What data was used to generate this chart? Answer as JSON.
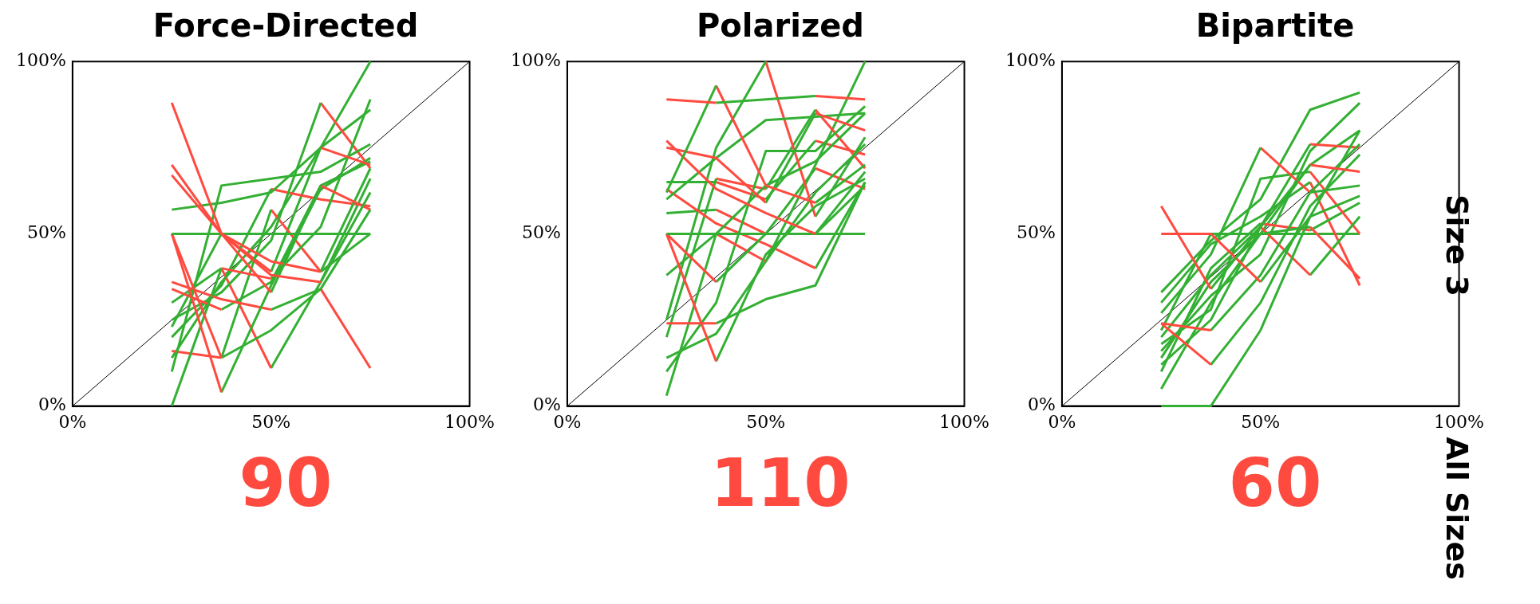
{
  "chart_data": [
    {
      "type": "line",
      "title": "Force-Directed",
      "xlim": [
        0,
        100
      ],
      "ylim": [
        0,
        100
      ],
      "xticks": [
        {
          "value": 0,
          "label": "0%"
        },
        {
          "value": 50,
          "label": "50%"
        },
        {
          "value": 100,
          "label": "100%"
        }
      ],
      "yticks": [
        {
          "value": 0,
          "label": "0%"
        },
        {
          "value": 50,
          "label": "50%"
        },
        {
          "value": 100,
          "label": "100%"
        }
      ],
      "grid": false,
      "legend": false,
      "annotations": [
        "90"
      ],
      "series": [
        {
          "x": [
            25,
            37.5,
            50,
            62.5
          ],
          "values": [
            88,
            50,
            38,
            36
          ],
          "color": "#ff4a3f"
        },
        {
          "x": [
            62.5,
            75
          ],
          "values": [
            36,
            62
          ],
          "color": "#33b033"
        },
        {
          "x": [
            25,
            37.5,
            50
          ],
          "values": [
            70,
            50,
            33
          ],
          "color": "#ff4a3f"
        },
        {
          "x": [
            50,
            62.5
          ],
          "values": [
            33,
            64
          ],
          "color": "#33b033"
        },
        {
          "x": [
            62.5,
            75
          ],
          "values": [
            64,
            57
          ],
          "color": "#ff4a3f"
        },
        {
          "x": [
            25,
            37.5,
            50,
            62.5
          ],
          "values": [
            67,
            50,
            42,
            39
          ],
          "color": "#ff4a3f"
        },
        {
          "x": [
            62.5,
            75
          ],
          "values": [
            39,
            69
          ],
          "color": "#33b033"
        },
        {
          "x": [
            25,
            37.5,
            50,
            62.5
          ],
          "values": [
            57,
            59,
            62,
            75
          ],
          "color": "#33b033"
        },
        {
          "x": [
            62.5,
            75
          ],
          "values": [
            75,
            70
          ],
          "color": "#ff4a3f"
        },
        {
          "x": [
            25,
            37.5,
            50,
            62.5,
            75
          ],
          "values": [
            50,
            50,
            50,
            50,
            50
          ],
          "color": "#33b033"
        },
        {
          "x": [
            25,
            37.5
          ],
          "values": [
            50,
            14
          ],
          "color": "#ff4a3f"
        },
        {
          "x": [
            37.5,
            50,
            62.5
          ],
          "values": [
            14,
            22,
            34
          ],
          "color": "#33b033"
        },
        {
          "x": [
            62.5,
            75
          ],
          "values": [
            34,
            11
          ],
          "color": "#ff4a3f"
        },
        {
          "x": [
            25,
            37.5
          ],
          "values": [
            50,
            4
          ],
          "color": "#ff4a3f"
        },
        {
          "x": [
            37.5,
            50,
            62.5,
            75
          ],
          "values": [
            4,
            35,
            63,
            72
          ],
          "color": "#33b033"
        },
        {
          "x": [
            25,
            37.5
          ],
          "values": [
            0,
            40
          ],
          "color": "#33b033"
        },
        {
          "x": [
            37.5,
            50
          ],
          "values": [
            40,
            37
          ],
          "color": "#ff4a3f"
        },
        {
          "x": [
            50,
            62.5,
            75
          ],
          "values": [
            37,
            52,
            89
          ],
          "color": "#33b033"
        },
        {
          "x": [
            25,
            37.5,
            50,
            62.5,
            75
          ],
          "values": [
            10,
            64,
            66,
            68,
            76
          ],
          "color": "#33b033"
        },
        {
          "x": [
            25,
            37.5,
            50
          ],
          "values": [
            36,
            31,
            28
          ],
          "color": "#ff4a3f"
        },
        {
          "x": [
            50,
            62.5,
            75
          ],
          "values": [
            28,
            34,
            57
          ],
          "color": "#33b033"
        },
        {
          "x": [
            25,
            37.5
          ],
          "values": [
            34,
            28
          ],
          "color": "#ff4a3f"
        },
        {
          "x": [
            37.5,
            50,
            62.5,
            75
          ],
          "values": [
            28,
            36,
            64,
            71
          ],
          "color": "#33b033"
        },
        {
          "x": [
            25,
            37.5,
            50,
            62.5
          ],
          "values": [
            25,
            33,
            48,
            88
          ],
          "color": "#33b033"
        },
        {
          "x": [
            62.5,
            75
          ],
          "values": [
            88,
            69
          ],
          "color": "#ff4a3f"
        },
        {
          "x": [
            25,
            37.5,
            50
          ],
          "values": [
            20,
            35,
            63
          ],
          "color": "#33b033"
        },
        {
          "x": [
            50,
            62.5,
            75
          ],
          "values": [
            63,
            60,
            58
          ],
          "color": "#ff4a3f"
        },
        {
          "x": [
            25,
            37.5
          ],
          "values": [
            16,
            14
          ],
          "color": "#ff4a3f"
        },
        {
          "x": [
            37.5,
            50
          ],
          "values": [
            14,
            57
          ],
          "color": "#33b033"
        },
        {
          "x": [
            50,
            62.5
          ],
          "values": [
            57,
            39
          ],
          "color": "#ff4a3f"
        },
        {
          "x": [
            62.5,
            75
          ],
          "values": [
            39,
            50
          ],
          "color": "#33b033"
        },
        {
          "x": [
            25,
            37.5
          ],
          "values": [
            30,
            40
          ],
          "color": "#33b033"
        },
        {
          "x": [
            37.5,
            50
          ],
          "values": [
            40,
            11
          ],
          "color": "#ff4a3f"
        },
        {
          "x": [
            50,
            62.5,
            75
          ],
          "values": [
            11,
            36,
            66
          ],
          "color": "#33b033"
        },
        {
          "x": [
            25,
            37.5
          ],
          "values": [
            23,
            50
          ],
          "color": "#33b033"
        },
        {
          "x": [
            37.5,
            50
          ],
          "values": [
            50,
            39
          ],
          "color": "#ff4a3f"
        },
        {
          "x": [
            50,
            62.5,
            75
          ],
          "values": [
            39,
            75,
            86
          ],
          "color": "#33b033"
        },
        {
          "x": [
            25,
            37.5,
            50,
            62.5,
            75
          ],
          "values": [
            14,
            36,
            52,
            75,
            100
          ],
          "color": "#33b033"
        },
        {
          "x": [
            0,
            100
          ],
          "values": [
            0,
            100
          ],
          "color": "#000000"
        }
      ]
    },
    {
      "type": "line",
      "title": "Polarized",
      "xlim": [
        0,
        100
      ],
      "ylim": [
        0,
        100
      ],
      "xticks": [
        {
          "value": 0,
          "label": "0%"
        },
        {
          "value": 50,
          "label": "50%"
        },
        {
          "value": 100,
          "label": "100%"
        }
      ],
      "yticks": [
        {
          "value": 0,
          "label": "0%"
        },
        {
          "value": 50,
          "label": "50%"
        },
        {
          "value": 100,
          "label": "100%"
        }
      ],
      "grid": false,
      "legend": false,
      "annotations": [
        "110"
      ],
      "series": [
        {
          "x": [
            25,
            37.5
          ],
          "values": [
            89,
            88
          ],
          "color": "#ff4a3f"
        },
        {
          "x": [
            37.5,
            50,
            62.5
          ],
          "values": [
            88,
            89,
            90
          ],
          "color": "#33b033"
        },
        {
          "x": [
            62.5,
            75
          ],
          "values": [
            90,
            89
          ],
          "color": "#ff4a3f"
        },
        {
          "x": [
            25,
            37.5
          ],
          "values": [
            62,
            93
          ],
          "color": "#33b033"
        },
        {
          "x": [
            37.5,
            50,
            62.5
          ],
          "values": [
            93,
            64,
            59
          ],
          "color": "#ff4a3f"
        },
        {
          "x": [
            62.5,
            75
          ],
          "values": [
            59,
            70
          ],
          "color": "#33b033"
        },
        {
          "x": [
            25,
            37.5,
            50,
            62.5
          ],
          "values": [
            77,
            63,
            56,
            50
          ],
          "color": "#ff4a3f"
        },
        {
          "x": [
            62.5,
            75
          ],
          "values": [
            50,
            68
          ],
          "color": "#33b033"
        },
        {
          "x": [
            25,
            37.5,
            50
          ],
          "values": [
            75,
            72,
            59
          ],
          "color": "#ff4a3f"
        },
        {
          "x": [
            50,
            62.5
          ],
          "values": [
            59,
            85
          ],
          "color": "#33b033"
        },
        {
          "x": [
            62.5,
            75
          ],
          "values": [
            85,
            80
          ],
          "color": "#ff4a3f"
        },
        {
          "x": [
            25,
            37.5,
            50,
            62.5,
            75
          ],
          "values": [
            50,
            50,
            50,
            50,
            50
          ],
          "color": "#33b033"
        },
        {
          "x": [
            25,
            37.5
          ],
          "values": [
            50,
            13
          ],
          "color": "#ff4a3f"
        },
        {
          "x": [
            37.5,
            50,
            62.5,
            75
          ],
          "values": [
            13,
            44,
            58,
            66
          ],
          "color": "#33b033"
        },
        {
          "x": [
            25,
            37.5
          ],
          "values": [
            50,
            36
          ],
          "color": "#ff4a3f"
        },
        {
          "x": [
            37.5,
            50,
            62.5,
            75
          ],
          "values": [
            36,
            50,
            50,
            64
          ],
          "color": "#33b033"
        },
        {
          "x": [
            25,
            37.5
          ],
          "values": [
            24,
            24
          ],
          "color": "#ff4a3f"
        },
        {
          "x": [
            37.5,
            50,
            62.5,
            75
          ],
          "values": [
            24,
            31,
            35,
            65
          ],
          "color": "#33b033"
        },
        {
          "x": [
            25,
            37.5,
            50,
            62.5,
            75
          ],
          "values": [
            3,
            50,
            64,
            71,
            85
          ],
          "color": "#33b033"
        },
        {
          "x": [
            25,
            37.5
          ],
          "values": [
            38,
            50
          ],
          "color": "#33b033"
        },
        {
          "x": [
            37.5,
            50
          ],
          "values": [
            50,
            42
          ],
          "color": "#ff4a3f"
        },
        {
          "x": [
            50,
            62.5,
            75
          ],
          "values": [
            42,
            62,
            76
          ],
          "color": "#33b033"
        },
        {
          "x": [
            25,
            37.5,
            50,
            62.5,
            75
          ],
          "values": [
            10,
            30,
            74,
            74,
            87
          ],
          "color": "#33b033"
        },
        {
          "x": [
            25,
            37.5,
            50,
            62.5,
            75
          ],
          "values": [
            60,
            72,
            83,
            84,
            85
          ],
          "color": "#33b033"
        },
        {
          "x": [
            25,
            37.5,
            50,
            62.5
          ],
          "values": [
            63,
            53,
            47,
            40
          ],
          "color": "#ff4a3f"
        },
        {
          "x": [
            62.5,
            75
          ],
          "values": [
            40,
            65
          ],
          "color": "#33b033"
        },
        {
          "x": [
            25,
            37.5,
            50
          ],
          "values": [
            25,
            75,
            100
          ],
          "color": "#33b033"
        },
        {
          "x": [
            50,
            62.5
          ],
          "values": [
            100,
            55
          ],
          "color": "#ff4a3f"
        },
        {
          "x": [
            62.5,
            75
          ],
          "values": [
            55,
            78
          ],
          "color": "#33b033"
        },
        {
          "x": [
            25,
            37.5
          ],
          "values": [
            20,
            66
          ],
          "color": "#33b033"
        },
        {
          "x": [
            37.5,
            50
          ],
          "values": [
            66,
            63
          ],
          "color": "#ff4a3f"
        },
        {
          "x": [
            50,
            62.5
          ],
          "values": [
            63,
            86
          ],
          "color": "#33b033"
        },
        {
          "x": [
            62.5,
            75
          ],
          "values": [
            86,
            69
          ],
          "color": "#ff4a3f"
        },
        {
          "x": [
            25,
            37.5,
            50,
            62.5,
            75
          ],
          "values": [
            14,
            21,
            42,
            70,
            100
          ],
          "color": "#33b033"
        },
        {
          "x": [
            25,
            37.5
          ],
          "values": [
            65,
            65
          ],
          "color": "#33b033"
        },
        {
          "x": [
            37.5,
            50
          ],
          "values": [
            65,
            60
          ],
          "color": "#ff4a3f"
        },
        {
          "x": [
            50,
            62.5
          ],
          "values": [
            60,
            77
          ],
          "color": "#33b033"
        },
        {
          "x": [
            62.5,
            75
          ],
          "values": [
            77,
            73
          ],
          "color": "#ff4a3f"
        },
        {
          "x": [
            25,
            37.5
          ],
          "values": [
            56,
            57
          ],
          "color": "#33b033"
        },
        {
          "x": [
            37.5,
            50
          ],
          "values": [
            57,
            50
          ],
          "color": "#ff4a3f"
        },
        {
          "x": [
            50,
            62.5
          ],
          "values": [
            50,
            69
          ],
          "color": "#33b033"
        },
        {
          "x": [
            62.5,
            75
          ],
          "values": [
            69,
            63
          ],
          "color": "#ff4a3f"
        },
        {
          "x": [
            0,
            100
          ],
          "values": [
            0,
            100
          ],
          "color": "#000000"
        }
      ]
    },
    {
      "type": "line",
      "title": "Bipartite",
      "xlim": [
        0,
        100
      ],
      "ylim": [
        0,
        100
      ],
      "xticks": [
        {
          "value": 0,
          "label": "0%"
        },
        {
          "value": 50,
          "label": "50%"
        },
        {
          "value": 100,
          "label": "100%"
        }
      ],
      "yticks": [
        {
          "value": 0,
          "label": "0%"
        },
        {
          "value": 50,
          "label": "50%"
        },
        {
          "value": 100,
          "label": "100%"
        }
      ],
      "grid": false,
      "legend": false,
      "annotations": [
        "60",
        "Size 3",
        "All Sizes"
      ],
      "series": [
        {
          "x": [
            25,
            37.5
          ],
          "values": [
            58,
            34
          ],
          "color": "#ff4a3f"
        },
        {
          "x": [
            37.5,
            50,
            62.5
          ],
          "values": [
            34,
            52,
            70
          ],
          "color": "#33b033"
        },
        {
          "x": [
            62.5,
            75
          ],
          "values": [
            70,
            68
          ],
          "color": "#ff4a3f"
        },
        {
          "x": [
            25,
            37.5,
            50
          ],
          "values": [
            50,
            50,
            36
          ],
          "color": "#ff4a3f"
        },
        {
          "x": [
            50,
            62.5,
            75
          ],
          "values": [
            36,
            55,
            61
          ],
          "color": "#33b033"
        },
        {
          "x": [
            25,
            37.5
          ],
          "values": [
            24,
            22
          ],
          "color": "#ff4a3f"
        },
        {
          "x": [
            37.5,
            50,
            62.5,
            75
          ],
          "values": [
            22,
            38,
            62,
            76
          ],
          "color": "#33b033"
        },
        {
          "x": [
            25,
            37.5
          ],
          "values": [
            24,
            12
          ],
          "color": "#ff4a3f"
        },
        {
          "x": [
            37.5,
            50,
            62.5,
            75
          ],
          "values": [
            12,
            30,
            58,
            73
          ],
          "color": "#33b033"
        },
        {
          "x": [
            25,
            37.5,
            50,
            62.5,
            75
          ],
          "values": [
            0,
            0,
            22,
            55,
            80
          ],
          "color": "#33b033"
        },
        {
          "x": [
            25,
            37.5,
            50
          ],
          "values": [
            27,
            44,
            75
          ],
          "color": "#33b033"
        },
        {
          "x": [
            50,
            62.5
          ],
          "values": [
            75,
            62
          ],
          "color": "#ff4a3f"
        },
        {
          "x": [
            62.5,
            75
          ],
          "values": [
            62,
            64
          ],
          "color": "#33b033"
        },
        {
          "x": [
            25,
            37.5,
            50,
            62.5,
            75
          ],
          "values": [
            33,
            48,
            60,
            86,
            91
          ],
          "color": "#33b033"
        },
        {
          "x": [
            25,
            37.5,
            50,
            62.5
          ],
          "values": [
            20,
            38,
            52,
            76
          ],
          "color": "#33b033"
        },
        {
          "x": [
            62.5,
            75
          ],
          "values": [
            76,
            75
          ],
          "color": "#ff4a3f"
        },
        {
          "x": [
            25,
            37.5,
            50,
            62.5
          ],
          "values": [
            14,
            36,
            50,
            52
          ],
          "color": "#33b033"
        },
        {
          "x": [
            62.5,
            75
          ],
          "values": [
            52,
            37
          ],
          "color": "#ff4a3f"
        },
        {
          "x": [
            25,
            37.5,
            50
          ],
          "values": [
            12,
            25,
            52
          ],
          "color": "#33b033"
        },
        {
          "x": [
            50,
            62.5
          ],
          "values": [
            52,
            38
          ],
          "color": "#ff4a3f"
        },
        {
          "x": [
            62.5,
            75
          ],
          "values": [
            38,
            55
          ],
          "color": "#33b033"
        },
        {
          "x": [
            25,
            37.5,
            50,
            62.5
          ],
          "values": [
            18,
            28,
            66,
            68
          ],
          "color": "#33b033"
        },
        {
          "x": [
            62.5,
            75
          ],
          "values": [
            68,
            50
          ],
          "color": "#ff4a3f"
        },
        {
          "x": [
            25,
            37.5,
            50
          ],
          "values": [
            10,
            40,
            53
          ],
          "color": "#33b033"
        },
        {
          "x": [
            50,
            62.5
          ],
          "values": [
            53,
            51
          ],
          "color": "#ff4a3f"
        },
        {
          "x": [
            62.5,
            75
          ],
          "values": [
            51,
            59
          ],
          "color": "#33b033"
        },
        {
          "x": [
            25,
            37.5,
            50,
            62.5
          ],
          "values": [
            30,
            47,
            55,
            65
          ],
          "color": "#33b033"
        },
        {
          "x": [
            62.5,
            75
          ],
          "values": [
            65,
            35
          ],
          "color": "#ff4a3f"
        },
        {
          "x": [
            25,
            37.5,
            50,
            62.5,
            75
          ],
          "values": [
            5,
            30,
            50,
            70,
            80
          ],
          "color": "#33b033"
        },
        {
          "x": [
            25,
            37.5,
            50,
            62.5,
            75
          ],
          "values": [
            16,
            32,
            44,
            74,
            88
          ],
          "color": "#33b033"
        },
        {
          "x": [
            25,
            37.5,
            50,
            62.5,
            75
          ],
          "values": [
            22,
            50,
            50,
            50,
            50
          ],
          "color": "#33b033"
        },
        {
          "x": [
            0,
            100
          ],
          "values": [
            0,
            100
          ],
          "color": "#000000"
        }
      ]
    }
  ]
}
